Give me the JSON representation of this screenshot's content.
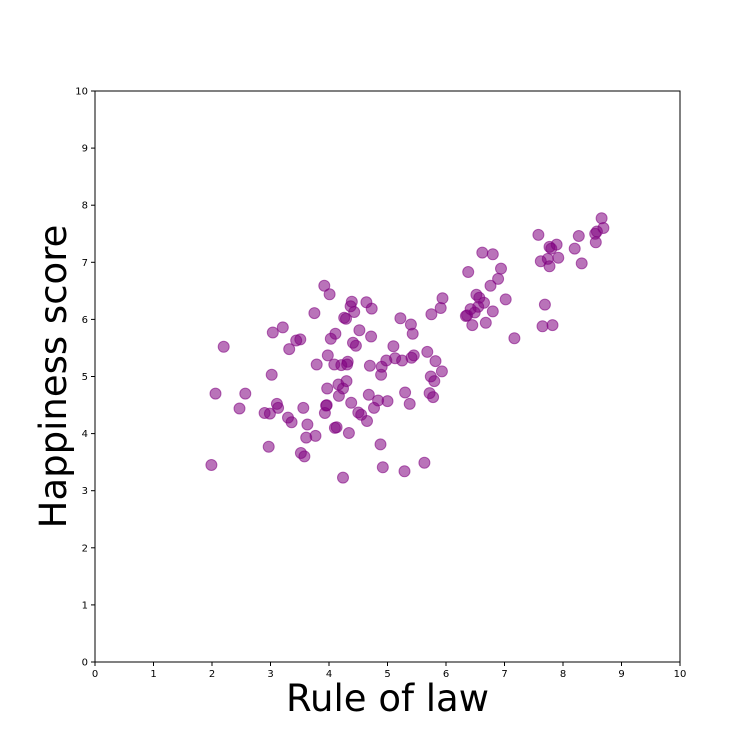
{
  "chart_data": {
    "type": "scatter",
    "xlabel": "Rule of law",
    "ylabel": "Happiness score",
    "xlim": [
      0,
      10
    ],
    "ylim": [
      0,
      10
    ],
    "xticks": [
      "0",
      "1",
      "2",
      "3",
      "4",
      "5",
      "6",
      "7",
      "8",
      "9",
      "10"
    ],
    "yticks": [
      "0",
      "1",
      "2",
      "3",
      "4",
      "5",
      "6",
      "7",
      "8",
      "9",
      "10"
    ],
    "grid": false,
    "marker_color": "#800080",
    "marker_opacity": 0.55,
    "points": [
      [
        1.99,
        3.45
      ],
      [
        2.06,
        4.7
      ],
      [
        2.2,
        5.52
      ],
      [
        2.47,
        4.44
      ],
      [
        2.57,
        4.7
      ],
      [
        2.9,
        4.36
      ],
      [
        2.97,
        3.77
      ],
      [
        2.99,
        4.35
      ],
      [
        3.02,
        5.03
      ],
      [
        3.04,
        5.77
      ],
      [
        3.11,
        4.52
      ],
      [
        3.13,
        4.45
      ],
      [
        3.21,
        5.86
      ],
      [
        3.3,
        4.28
      ],
      [
        3.32,
        5.48
      ],
      [
        3.36,
        4.2
      ],
      [
        3.44,
        5.63
      ],
      [
        3.51,
        5.65
      ],
      [
        3.52,
        3.66
      ],
      [
        3.56,
        4.45
      ],
      [
        3.58,
        3.6
      ],
      [
        3.61,
        3.93
      ],
      [
        3.63,
        4.16
      ],
      [
        3.75,
        6.11
      ],
      [
        3.77,
        3.96
      ],
      [
        3.79,
        5.21
      ],
      [
        3.92,
        6.59
      ],
      [
        3.93,
        4.36
      ],
      [
        3.95,
        4.49
      ],
      [
        3.96,
        4.5
      ],
      [
        3.97,
        4.79
      ],
      [
        3.98,
        5.37
      ],
      [
        4.01,
        6.44
      ],
      [
        4.03,
        5.66
      ],
      [
        4.09,
        5.21
      ],
      [
        4.1,
        4.1
      ],
      [
        4.11,
        5.75
      ],
      [
        4.13,
        4.11
      ],
      [
        4.16,
        4.86
      ],
      [
        4.17,
        4.66
      ],
      [
        4.21,
        5.2
      ],
      [
        4.24,
        4.79
      ],
      [
        4.24,
        3.23
      ],
      [
        4.26,
        6.03
      ],
      [
        4.29,
        6.01
      ],
      [
        4.3,
        4.92
      ],
      [
        4.31,
        5.21
      ],
      [
        4.32,
        5.26
      ],
      [
        4.34,
        4.01
      ],
      [
        4.37,
        6.23
      ],
      [
        4.38,
        4.54
      ],
      [
        4.39,
        6.31
      ],
      [
        4.41,
        5.59
      ],
      [
        4.43,
        6.13
      ],
      [
        4.46,
        5.54
      ],
      [
        4.5,
        4.37
      ],
      [
        4.52,
        5.81
      ],
      [
        4.55,
        4.33
      ],
      [
        4.64,
        6.3
      ],
      [
        4.65,
        4.22
      ],
      [
        4.68,
        4.68
      ],
      [
        4.7,
        5.19
      ],
      [
        4.72,
        5.7
      ],
      [
        4.73,
        6.19
      ],
      [
        4.77,
        4.45
      ],
      [
        4.84,
        4.58
      ],
      [
        4.88,
        3.81
      ],
      [
        4.89,
        5.03
      ],
      [
        4.9,
        5.17
      ],
      [
        4.92,
        3.41
      ],
      [
        4.98,
        5.28
      ],
      [
        5.0,
        4.57
      ],
      [
        5.1,
        5.53
      ],
      [
        5.13,
        5.32
      ],
      [
        5.22,
        6.02
      ],
      [
        5.25,
        5.28
      ],
      [
        5.29,
        3.34
      ],
      [
        5.3,
        4.72
      ],
      [
        5.38,
        4.52
      ],
      [
        5.4,
        5.91
      ],
      [
        5.41,
        5.33
      ],
      [
        5.43,
        5.75
      ],
      [
        5.45,
        5.37
      ],
      [
        5.63,
        3.49
      ],
      [
        5.68,
        5.43
      ],
      [
        5.72,
        4.71
      ],
      [
        5.74,
        5.0
      ],
      [
        5.75,
        6.09
      ],
      [
        5.78,
        4.64
      ],
      [
        5.8,
        4.92
      ],
      [
        5.82,
        5.27
      ],
      [
        5.91,
        6.2
      ],
      [
        5.93,
        5.09
      ],
      [
        5.94,
        6.37
      ],
      [
        6.34,
        6.06
      ],
      [
        6.36,
        6.07
      ],
      [
        6.38,
        6.83
      ],
      [
        6.42,
        6.18
      ],
      [
        6.45,
        5.9
      ],
      [
        6.49,
        6.12
      ],
      [
        6.52,
        6.43
      ],
      [
        6.55,
        6.22
      ],
      [
        6.57,
        6.38
      ],
      [
        6.62,
        7.17
      ],
      [
        6.65,
        6.29
      ],
      [
        6.68,
        5.94
      ],
      [
        6.76,
        6.59
      ],
      [
        6.8,
        7.14
      ],
      [
        6.8,
        6.14
      ],
      [
        6.89,
        6.71
      ],
      [
        6.94,
        6.89
      ],
      [
        7.02,
        6.35
      ],
      [
        7.17,
        5.67
      ],
      [
        7.58,
        7.48
      ],
      [
        7.62,
        7.02
      ],
      [
        7.65,
        5.88
      ],
      [
        7.69,
        6.26
      ],
      [
        7.74,
        7.06
      ],
      [
        7.77,
        6.93
      ],
      [
        7.77,
        7.27
      ],
      [
        7.8,
        7.24
      ],
      [
        7.82,
        5.9
      ],
      [
        7.89,
        7.31
      ],
      [
        7.92,
        7.08
      ],
      [
        8.2,
        7.24
      ],
      [
        8.27,
        7.46
      ],
      [
        8.32,
        6.98
      ],
      [
        8.55,
        7.5
      ],
      [
        8.56,
        7.35
      ],
      [
        8.58,
        7.54
      ],
      [
        8.66,
        7.77
      ],
      [
        8.69,
        7.6
      ]
    ]
  }
}
